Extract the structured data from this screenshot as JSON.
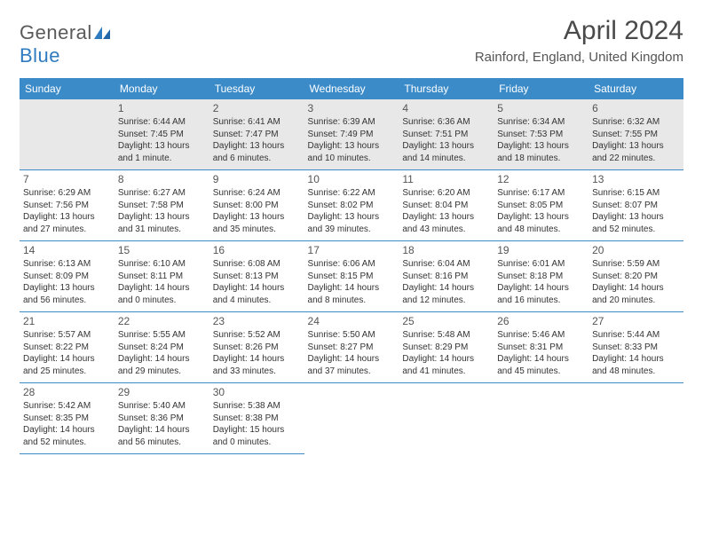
{
  "logo": {
    "text_general": "General",
    "text_blue": "Blue"
  },
  "title": "April 2024",
  "location": "Rainford, England, United Kingdom",
  "colors": {
    "header_bg": "#3b8bc9",
    "shade_bg": "#e8e8e8",
    "border": "#3b8bc9",
    "text": "#333333"
  },
  "daynames": [
    "Sunday",
    "Monday",
    "Tuesday",
    "Wednesday",
    "Thursday",
    "Friday",
    "Saturday"
  ],
  "weeks": [
    [
      null,
      {
        "n": "1",
        "sr": "6:44 AM",
        "ss": "7:45 PM",
        "dl": "13 hours and 1 minute."
      },
      {
        "n": "2",
        "sr": "6:41 AM",
        "ss": "7:47 PM",
        "dl": "13 hours and 6 minutes."
      },
      {
        "n": "3",
        "sr": "6:39 AM",
        "ss": "7:49 PM",
        "dl": "13 hours and 10 minutes."
      },
      {
        "n": "4",
        "sr": "6:36 AM",
        "ss": "7:51 PM",
        "dl": "13 hours and 14 minutes."
      },
      {
        "n": "5",
        "sr": "6:34 AM",
        "ss": "7:53 PM",
        "dl": "13 hours and 18 minutes."
      },
      {
        "n": "6",
        "sr": "6:32 AM",
        "ss": "7:55 PM",
        "dl": "13 hours and 22 minutes."
      }
    ],
    [
      {
        "n": "7",
        "sr": "6:29 AM",
        "ss": "7:56 PM",
        "dl": "13 hours and 27 minutes."
      },
      {
        "n": "8",
        "sr": "6:27 AM",
        "ss": "7:58 PM",
        "dl": "13 hours and 31 minutes."
      },
      {
        "n": "9",
        "sr": "6:24 AM",
        "ss": "8:00 PM",
        "dl": "13 hours and 35 minutes."
      },
      {
        "n": "10",
        "sr": "6:22 AM",
        "ss": "8:02 PM",
        "dl": "13 hours and 39 minutes."
      },
      {
        "n": "11",
        "sr": "6:20 AM",
        "ss": "8:04 PM",
        "dl": "13 hours and 43 minutes."
      },
      {
        "n": "12",
        "sr": "6:17 AM",
        "ss": "8:05 PM",
        "dl": "13 hours and 48 minutes."
      },
      {
        "n": "13",
        "sr": "6:15 AM",
        "ss": "8:07 PM",
        "dl": "13 hours and 52 minutes."
      }
    ],
    [
      {
        "n": "14",
        "sr": "6:13 AM",
        "ss": "8:09 PM",
        "dl": "13 hours and 56 minutes."
      },
      {
        "n": "15",
        "sr": "6:10 AM",
        "ss": "8:11 PM",
        "dl": "14 hours and 0 minutes."
      },
      {
        "n": "16",
        "sr": "6:08 AM",
        "ss": "8:13 PM",
        "dl": "14 hours and 4 minutes."
      },
      {
        "n": "17",
        "sr": "6:06 AM",
        "ss": "8:15 PM",
        "dl": "14 hours and 8 minutes."
      },
      {
        "n": "18",
        "sr": "6:04 AM",
        "ss": "8:16 PM",
        "dl": "14 hours and 12 minutes."
      },
      {
        "n": "19",
        "sr": "6:01 AM",
        "ss": "8:18 PM",
        "dl": "14 hours and 16 minutes."
      },
      {
        "n": "20",
        "sr": "5:59 AM",
        "ss": "8:20 PM",
        "dl": "14 hours and 20 minutes."
      }
    ],
    [
      {
        "n": "21",
        "sr": "5:57 AM",
        "ss": "8:22 PM",
        "dl": "14 hours and 25 minutes."
      },
      {
        "n": "22",
        "sr": "5:55 AM",
        "ss": "8:24 PM",
        "dl": "14 hours and 29 minutes."
      },
      {
        "n": "23",
        "sr": "5:52 AM",
        "ss": "8:26 PM",
        "dl": "14 hours and 33 minutes."
      },
      {
        "n": "24",
        "sr": "5:50 AM",
        "ss": "8:27 PM",
        "dl": "14 hours and 37 minutes."
      },
      {
        "n": "25",
        "sr": "5:48 AM",
        "ss": "8:29 PM",
        "dl": "14 hours and 41 minutes."
      },
      {
        "n": "26",
        "sr": "5:46 AM",
        "ss": "8:31 PM",
        "dl": "14 hours and 45 minutes."
      },
      {
        "n": "27",
        "sr": "5:44 AM",
        "ss": "8:33 PM",
        "dl": "14 hours and 48 minutes."
      }
    ],
    [
      {
        "n": "28",
        "sr": "5:42 AM",
        "ss": "8:35 PM",
        "dl": "14 hours and 52 minutes."
      },
      {
        "n": "29",
        "sr": "5:40 AM",
        "ss": "8:36 PM",
        "dl": "14 hours and 56 minutes."
      },
      {
        "n": "30",
        "sr": "5:38 AM",
        "ss": "8:38 PM",
        "dl": "15 hours and 0 minutes."
      },
      null,
      null,
      null,
      null
    ]
  ],
  "labels": {
    "sunrise": "Sunrise:",
    "sunset": "Sunset:",
    "daylight": "Daylight:"
  }
}
